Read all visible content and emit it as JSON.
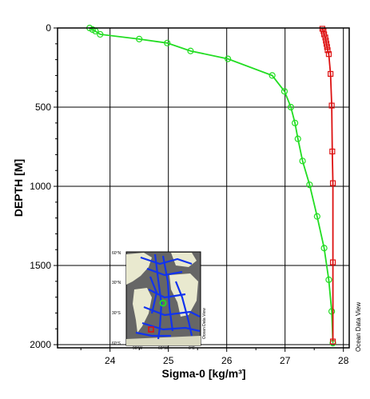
{
  "chart_data": {
    "type": "line",
    "xlabel": "Sigma-0 [kg/m³]",
    "ylabel": "DEPTH [M]",
    "xlim": [
      23.1,
      28.1
    ],
    "ylim": [
      2020,
      0
    ],
    "xticks": [
      24,
      25,
      26,
      27,
      28
    ],
    "yticks": [
      0,
      500,
      1000,
      1500,
      2000
    ],
    "grid": true,
    "series": [
      {
        "name": "",
        "color": "#22dd22",
        "marker": "circle",
        "points": [
          [
            23.65,
            0
          ],
          [
            23.7,
            10
          ],
          [
            23.75,
            20
          ],
          [
            23.83,
            40
          ],
          [
            24.5,
            70
          ],
          [
            24.98,
            95
          ],
          [
            25.38,
            145
          ],
          [
            26.02,
            195
          ],
          [
            26.78,
            300
          ],
          [
            26.99,
            400
          ],
          [
            27.1,
            500
          ],
          [
            27.17,
            600
          ],
          [
            27.22,
            700
          ],
          [
            27.3,
            840
          ],
          [
            27.42,
            990
          ],
          [
            27.55,
            1190
          ],
          [
            27.67,
            1390
          ],
          [
            27.75,
            1590
          ],
          [
            27.8,
            1790
          ],
          [
            27.82,
            1990
          ]
        ]
      },
      {
        "name": "",
        "color": "#dd1111",
        "marker": "square",
        "points": [
          [
            27.64,
            5
          ],
          [
            27.66,
            20
          ],
          [
            27.67,
            40
          ],
          [
            27.69,
            60
          ],
          [
            27.7,
            80
          ],
          [
            27.71,
            100
          ],
          [
            27.72,
            120
          ],
          [
            27.73,
            140
          ],
          [
            27.75,
            165
          ],
          [
            27.78,
            290
          ],
          [
            27.8,
            490
          ],
          [
            27.81,
            780
          ],
          [
            27.82,
            980
          ],
          [
            27.82,
            1480
          ],
          [
            27.82,
            1980
          ]
        ]
      }
    ],
    "inset_map": {
      "lat_labels": [
        "60°N",
        "30°N",
        "30°S",
        "60°S"
      ],
      "lon_labels": [
        "90°W",
        "60°W",
        "0°E"
      ],
      "credit": "Ocean Data View"
    },
    "credit": "Ocean Data View"
  }
}
